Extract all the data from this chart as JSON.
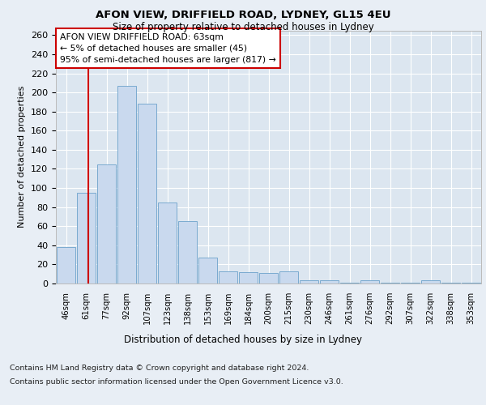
{
  "title_line1": "AFON VIEW, DRIFFIELD ROAD, LYDNEY, GL15 4EU",
  "title_line2": "Size of property relative to detached houses in Lydney",
  "xlabel": "Distribution of detached houses by size in Lydney",
  "ylabel": "Number of detached properties",
  "footnote1": "Contains HM Land Registry data © Crown copyright and database right 2024.",
  "footnote2": "Contains public sector information licensed under the Open Government Licence v3.0.",
  "categories": [
    "46sqm",
    "61sqm",
    "77sqm",
    "92sqm",
    "107sqm",
    "123sqm",
    "138sqm",
    "153sqm",
    "169sqm",
    "184sqm",
    "200sqm",
    "215sqm",
    "230sqm",
    "246sqm",
    "261sqm",
    "276sqm",
    "292sqm",
    "307sqm",
    "322sqm",
    "338sqm",
    "353sqm"
  ],
  "values": [
    38,
    95,
    125,
    207,
    188,
    85,
    65,
    27,
    13,
    12,
    11,
    13,
    3,
    3,
    1,
    3,
    1,
    1,
    3,
    1,
    1
  ],
  "bar_color": "#c9d9ee",
  "bar_edge_color": "#7aaad0",
  "property_label": "AFON VIEW DRIFFIELD ROAD: 63sqm",
  "annotation_line1": "← 5% of detached houses are smaller (45)",
  "annotation_line2": "95% of semi-detached houses are larger (817) →",
  "vline_color": "#cc0000",
  "vline_x_index": 1.08,
  "annotation_box_color": "#ffffff",
  "annotation_box_edge": "#cc0000",
  "ylim": [
    0,
    265
  ],
  "yticks": [
    0,
    20,
    40,
    60,
    80,
    100,
    120,
    140,
    160,
    180,
    200,
    220,
    240,
    260
  ],
  "background_color": "#e8eef5",
  "plot_bg_color": "#dce6f0"
}
